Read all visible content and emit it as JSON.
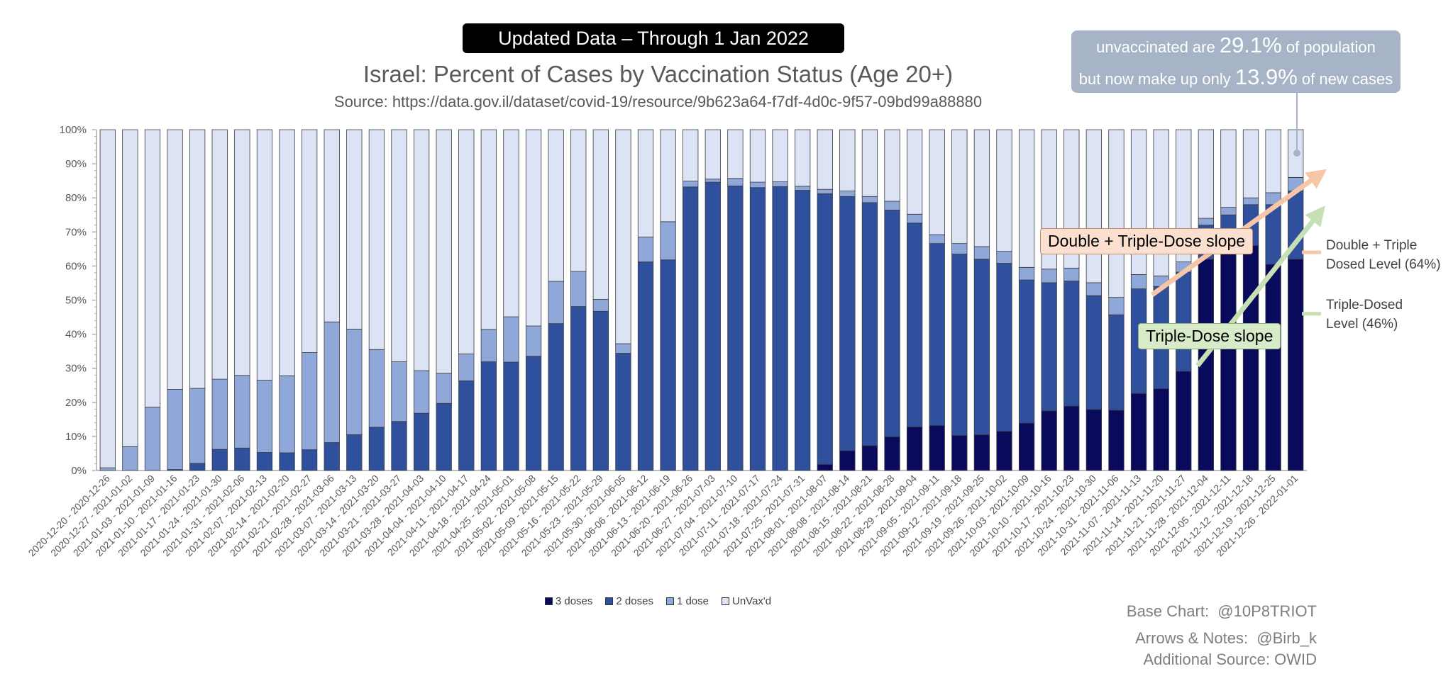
{
  "banner": "Updated Data – Through 1 Jan 2022",
  "chart_data": {
    "type": "bar",
    "stacked": true,
    "title": "Israel: Percent of Cases by Vaccination Status (Age 20+)",
    "subtitle": "Source: https://data.gov.il/dataset/covid-19/resource/9b623a64-f7df-4d0c-9f57-09bd99a88880",
    "ylim": [
      0,
      100
    ],
    "yticks": [
      "0%",
      "10%",
      "20%",
      "30%",
      "40%",
      "50%",
      "60%",
      "70%",
      "80%",
      "90%",
      "100%"
    ],
    "grid": false,
    "legend_position": "bottom",
    "categories": [
      "2020-12-20 - 2020-12-26",
      "2020-12-27 - 2021-01-02",
      "2021-01-03 - 2021-01-09",
      "2021-01-10 - 2021-01-16",
      "2021-01-17 - 2021-01-23",
      "2021-01-24 - 2021-01-30",
      "2021-01-31 - 2021-02-06",
      "2021-02-07 - 2021-02-13",
      "2021-02-14 - 2021-02-20",
      "2021-02-21 - 2021-02-27",
      "2021-02-28 - 2021-03-06",
      "2021-03-07 - 2021-03-13",
      "2021-03-14 - 2021-03-20",
      "2021-03-21 - 2021-03-27",
      "2021-03-28 - 2021-04-03",
      "2021-04-04 - 2021-04-10",
      "2021-04-11 - 2021-04-17",
      "2021-04-18 - 2021-04-24",
      "2021-04-25 - 2021-05-01",
      "2021-05-02 - 2021-05-08",
      "2021-05-09 - 2021-05-15",
      "2021-05-16 - 2021-05-22",
      "2021-05-23 - 2021-05-29",
      "2021-05-30 - 2021-06-05",
      "2021-06-06 - 2021-06-12",
      "2021-06-13 - 2021-06-19",
      "2021-06-20 - 2021-06-26",
      "2021-06-27 - 2021-07-03",
      "2021-07-04 - 2021-07-10",
      "2021-07-11 - 2021-07-17",
      "2021-07-18 - 2021-07-24",
      "2021-07-25 - 2021-07-31",
      "2021-08-01 - 2021-08-07",
      "2021-08-08 - 2021-08-14",
      "2021-08-15 - 2021-08-21",
      "2021-08-22 - 2021-08-28",
      "2021-08-29 - 2021-09-04",
      "2021-09-05 - 2021-09-11",
      "2021-09-12 - 2021-09-18",
      "2021-09-19 - 2021-09-25",
      "2021-09-26 - 2021-10-02",
      "2021-10-03 - 2021-10-09",
      "2021-10-10 - 2021-10-16",
      "2021-10-17 - 2021-10-23",
      "2021-10-24 - 2021-10-30",
      "2021-10-31 - 2021-11-06",
      "2021-11-07 - 2021-11-13",
      "2021-11-14 - 2021-11-20",
      "2021-11-21 - 2021-11-27",
      "2021-11-28 - 2021-12-04",
      "2021-12-05 - 2021-12-11",
      "2021-12-12 - 2021-12-18",
      "2021-12-19 - 2021-12-25",
      "2021-12-26 - 2022-01-01"
    ],
    "series": [
      {
        "name": "3 doses",
        "color": "#0a0a5c",
        "values": [
          0,
          0,
          0,
          0,
          0,
          0,
          0,
          0,
          0,
          0,
          0,
          0,
          0,
          0,
          0,
          0,
          0,
          0,
          0,
          0,
          0,
          0,
          0,
          0,
          0,
          0,
          0,
          0,
          0,
          0,
          0,
          0,
          1.8,
          5.8,
          7.3,
          9.9,
          12.8,
          13.2,
          10.3,
          10.5,
          11.5,
          13.9,
          17.5,
          18.9,
          17.9,
          17.7,
          22.6,
          24.0,
          29.1,
          62,
          64,
          66,
          60.5,
          62
        ]
      },
      {
        "name": "2 doses",
        "color": "#2f509c",
        "values": [
          0,
          0,
          0,
          0.3,
          2.1,
          6.2,
          6.6,
          5.3,
          5.2,
          6.1,
          8.2,
          10.5,
          12.7,
          14.4,
          16.8,
          19.7,
          26.3,
          31.9,
          31.8,
          33.5,
          43.1,
          48.1,
          46.7,
          34.4,
          61.2,
          61.8,
          83.2,
          84.6,
          83.5,
          83.0,
          83.3,
          82.2,
          79.4,
          74.6,
          71.3,
          66.5,
          59.8,
          53.4,
          53.2,
          51.5,
          49.3,
          42.0,
          37.6,
          36.7,
          33.4,
          28.0,
          30.7,
          30.0,
          29.1,
          10,
          11,
          12,
          17.5,
          20
        ]
      },
      {
        "name": "1 dose",
        "color": "#8fa7d9",
        "values": [
          0.8,
          7.0,
          18.6,
          23.5,
          22.0,
          20.6,
          21.3,
          21.2,
          22.6,
          28.5,
          35.4,
          31.0,
          22.8,
          17.5,
          12.5,
          8.8,
          7.9,
          9.5,
          13.3,
          8.9,
          12.4,
          10.3,
          3.5,
          2.8,
          7.3,
          11.2,
          1.7,
          0.9,
          2.2,
          1.6,
          1.4,
          1.2,
          1.3,
          1.6,
          1.8,
          2.6,
          2.6,
          2.6,
          3.1,
          3.7,
          3.5,
          3.7,
          4.0,
          3.8,
          3.8,
          5.1,
          4.2,
          3.1,
          3.0,
          2.0,
          2.2,
          2.0,
          3.5,
          4.0
        ]
      },
      {
        "name": "UnVax'd",
        "color": "#dce3f4",
        "values": [
          99.2,
          93.0,
          81.4,
          76.2,
          75.9,
          73.2,
          72.1,
          73.5,
          72.2,
          65.4,
          56.4,
          58.5,
          64.5,
          68.1,
          70.7,
          71.5,
          65.8,
          58.6,
          54.9,
          57.6,
          44.5,
          41.6,
          49.8,
          62.8,
          31.5,
          27.0,
          15.1,
          14.5,
          14.3,
          15.4,
          15.3,
          16.6,
          17.5,
          18.0,
          19.6,
          21.0,
          24.8,
          30.8,
          33.4,
          34.3,
          35.7,
          40.4,
          40.9,
          40.6,
          44.9,
          49.2,
          42.5,
          42.9,
          38.8,
          26,
          22.8,
          20,
          18.5,
          14
        ]
      }
    ]
  },
  "callout": {
    "prefix1": "unvaccinated are ",
    "big1": "29.1%",
    "suffix1": " of population",
    "prefix2": "but now make up only ",
    "big2": "13.9%",
    "suffix2": " of new cases"
  },
  "annotations": {
    "double_triple_slope": "Double + Triple-Dose slope",
    "triple_slope": "Triple-Dose slope",
    "double_triple_level_line1": "Double + Triple",
    "double_triple_level_line2": "Dosed Level (64%)",
    "triple_level_line1": "Triple-Dosed",
    "triple_level_line2": "Level (46%)",
    "arrow_orange": "#f7c6a8",
    "arrow_green": "#c6e0b4"
  },
  "credits": {
    "base_label": "Base Chart:",
    "base_value": "@10P8TRIOT",
    "arrows_label": "Arrows & Notes:",
    "arrows_value": "@Birb_k",
    "additional": "Additional Source: OWID"
  }
}
